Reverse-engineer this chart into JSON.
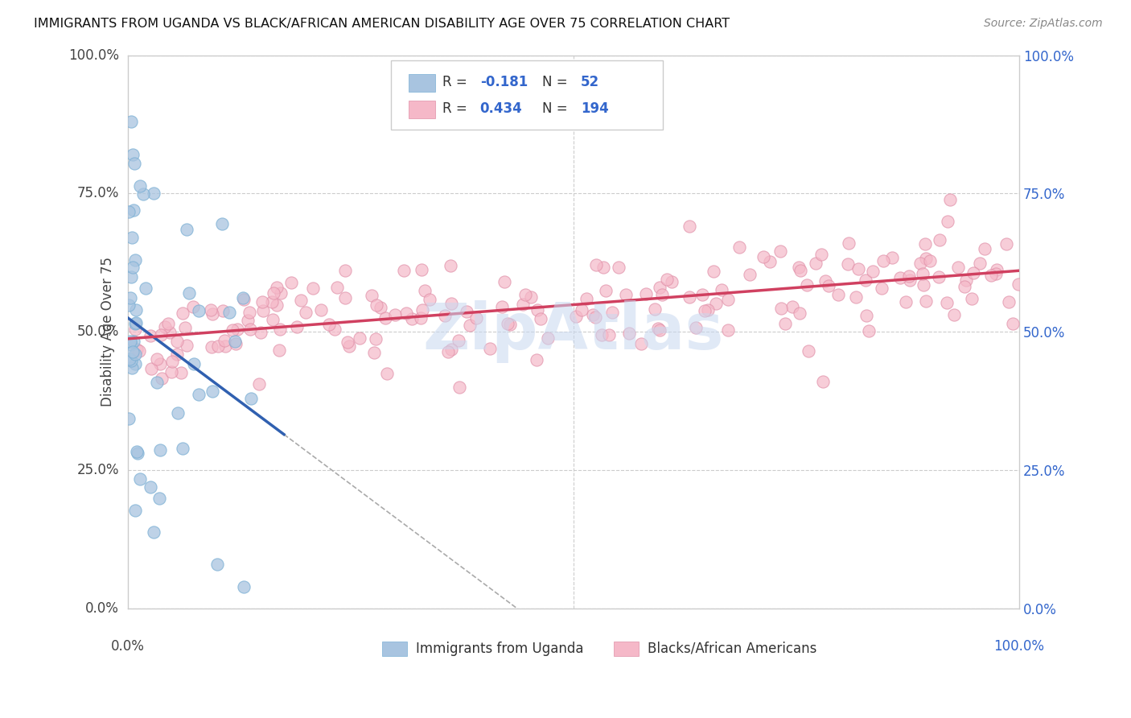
{
  "title": "IMMIGRANTS FROM UGANDA VS BLACK/AFRICAN AMERICAN DISABILITY AGE OVER 75 CORRELATION CHART",
  "source": "Source: ZipAtlas.com",
  "ylabel": "Disability Age Over 75",
  "ytick_labels": [
    "0.0%",
    "25.0%",
    "50.0%",
    "75.0%",
    "100.0%"
  ],
  "ytick_values": [
    0.0,
    0.25,
    0.5,
    0.75,
    1.0
  ],
  "color_uganda": "#a8c4e0",
  "color_uganda_edge": "#7aafd4",
  "color_uganda_line": "#3060b0",
  "color_baa": "#f5b8c8",
  "color_baa_edge": "#e090a8",
  "color_baa_line": "#d04060",
  "color_watermark": "#c8d8f0",
  "watermark_text": "ZipAtlas",
  "grid_color": "#cccccc"
}
